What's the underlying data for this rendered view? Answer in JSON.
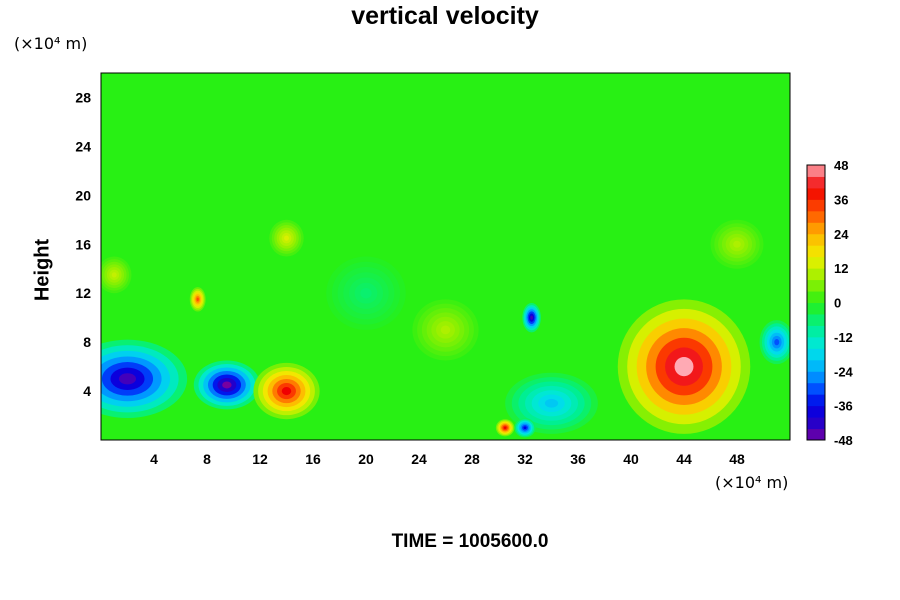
{
  "chart_data": {
    "type": "heatmap",
    "title": "vertical velocity",
    "ylabel": "Height",
    "xlabel": "",
    "x_unit": "(×10⁴ m)",
    "y_unit": "(×10⁴ m)",
    "xlim": [
      0,
      52
    ],
    "ylim": [
      0,
      30
    ],
    "x_ticks": [
      4,
      8,
      12,
      16,
      20,
      24,
      28,
      32,
      36,
      40,
      44,
      48
    ],
    "y_ticks": [
      4,
      8,
      12,
      16,
      20,
      24,
      28
    ],
    "colorbar": {
      "min": -48,
      "max": 48,
      "step": 4,
      "ticks": [
        48,
        36,
        24,
        12,
        0,
        -12,
        -24,
        -36,
        -48
      ]
    },
    "background_value": 0,
    "features": [
      {
        "x": 2,
        "y": 5,
        "rx": 4.5,
        "ry": 3.2,
        "value": -44
      },
      {
        "x": 9.5,
        "y": 4.5,
        "rx": 2.5,
        "ry": 2.0,
        "value": -48
      },
      {
        "x": 14,
        "y": 4,
        "rx": 2.5,
        "ry": 2.3,
        "value": 40
      },
      {
        "x": 44,
        "y": 6,
        "rx": 5,
        "ry": 5.5,
        "value": 48
      },
      {
        "x": 34,
        "y": 3,
        "rx": 3.5,
        "ry": 2.5,
        "value": -20
      },
      {
        "x": 32.5,
        "y": 10,
        "rx": 0.7,
        "ry": 1.2,
        "value": -44
      },
      {
        "x": 30.5,
        "y": 1,
        "rx": 0.7,
        "ry": 0.7,
        "value": 40
      },
      {
        "x": 32,
        "y": 1,
        "rx": 0.8,
        "ry": 0.8,
        "value": -36
      },
      {
        "x": 7.3,
        "y": 11.5,
        "rx": 0.6,
        "ry": 1.0,
        "value": 32
      },
      {
        "x": 51,
        "y": 8,
        "rx": 1.3,
        "ry": 1.8,
        "value": -30
      },
      {
        "x": 14,
        "y": 16.5,
        "rx": 1.3,
        "ry": 1.5,
        "value": 14
      },
      {
        "x": 1,
        "y": 13.5,
        "rx": 1.3,
        "ry": 1.5,
        "value": 12
      },
      {
        "x": 26,
        "y": 9,
        "rx": 2.5,
        "ry": 2.5,
        "value": 10
      },
      {
        "x": 20,
        "y": 12,
        "rx": 3,
        "ry": 3,
        "value": -6
      },
      {
        "x": 48,
        "y": 16,
        "rx": 2,
        "ry": 2,
        "value": 10
      }
    ]
  },
  "time_label": "TIME = 1005600.0"
}
